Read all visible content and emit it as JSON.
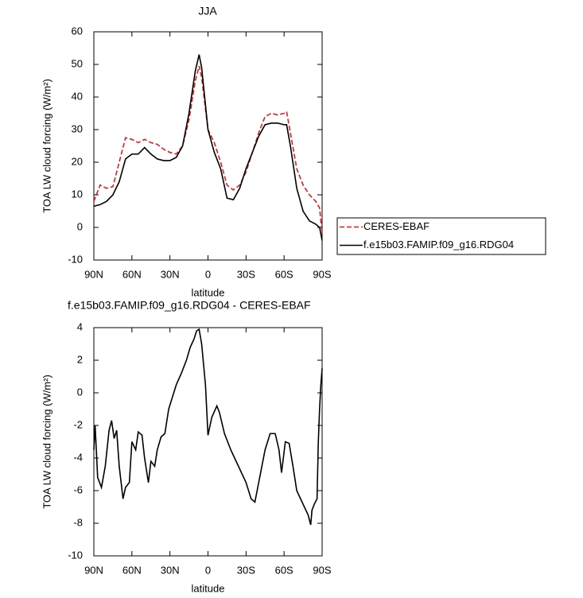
{
  "chart_data": [
    {
      "type": "line",
      "title": "JJA",
      "xlabel": "latitude",
      "ylabel": "TOA LW cloud forcing (W/m²)",
      "x": [
        90,
        85,
        80,
        75,
        70,
        65,
        60,
        55,
        50,
        45,
        40,
        35,
        30,
        25,
        20,
        15,
        10,
        7,
        5,
        0,
        -5,
        -10,
        -15,
        -20,
        -25,
        -30,
        -35,
        -40,
        -45,
        -50,
        -55,
        -60,
        -62,
        -65,
        -70,
        -75,
        -80,
        -85,
        -88,
        -90
      ],
      "series": [
        {
          "name": "CERES-EBAF",
          "color": "#e41a1c",
          "linestyle": "dashed",
          "values": [
            8,
            13,
            12,
            12.5,
            20,
            27.5,
            27,
            26,
            27,
            26,
            25.5,
            24,
            23,
            22.5,
            25,
            33,
            45,
            49.5,
            46,
            30,
            26,
            20,
            13,
            11.5,
            13,
            17,
            23,
            29,
            34,
            35,
            34.5,
            35,
            35.5,
            29,
            18,
            13,
            10,
            8,
            6,
            -2
          ]
        },
        {
          "name": "f.e15b03.FAMIP.f09_g16.RDG04",
          "color": "#000000",
          "linestyle": "solid",
          "values": [
            6.5,
            7,
            8,
            10,
            14,
            21,
            22.5,
            22.5,
            24.5,
            22.5,
            21,
            20.5,
            20.5,
            21.5,
            25,
            35,
            48,
            53,
            49,
            30,
            23,
            18,
            9,
            8.5,
            12,
            18,
            23,
            28,
            31.5,
            32,
            32,
            31.5,
            31.5,
            25,
            12,
            5,
            2,
            1,
            0,
            -4
          ]
        }
      ],
      "xlim": [
        90,
        -90
      ],
      "xticks": [
        {
          "value": 90,
          "label": "90N"
        },
        {
          "value": 60,
          "label": "60N"
        },
        {
          "value": 30,
          "label": "30N"
        },
        0,
        {
          "value": -30,
          "label": "30S"
        },
        {
          "value": -60,
          "label": "60S"
        },
        {
          "value": -90,
          "label": "90S"
        }
      ],
      "ylim": [
        -10,
        60
      ],
      "yticks": [
        -10,
        0,
        10,
        20,
        30,
        40,
        50,
        60
      ],
      "legend": "right"
    },
    {
      "type": "line",
      "title": "f.e15b03.FAMIP.f09_g16.RDG04 - CERES-EBAF",
      "xlabel": "latitude",
      "ylabel": "TOA LW cloud forcing (W/m²)",
      "x": [
        90,
        89,
        87,
        84,
        81,
        78,
        76,
        74,
        72,
        70,
        67,
        65,
        62,
        60,
        57,
        55,
        52,
        50,
        47,
        45,
        42,
        40,
        37,
        34,
        31,
        29,
        25,
        21,
        17,
        14,
        11,
        9,
        7,
        5,
        2,
        0,
        -3,
        -7,
        -9,
        -13,
        -18,
        -24,
        -30,
        -34,
        -37,
        -40,
        -45,
        -49,
        -53,
        -56,
        -58,
        -61,
        -64,
        -67,
        -70,
        -73,
        -76,
        -79,
        -81,
        -82,
        -84,
        -86,
        -87,
        -88,
        -89,
        -90
      ],
      "series": [
        {
          "name": "f.e15b03.FAMIP.f09_g16.RDG04 - CERES-EBAF",
          "color": "#000000",
          "linestyle": "solid",
          "values": [
            -3.5,
            -2,
            -5.2,
            -5.8,
            -4.5,
            -2.3,
            -1.7,
            -2.8,
            -2.3,
            -4.5,
            -6.5,
            -5.8,
            -5.5,
            -3,
            -3.5,
            -2.4,
            -2.6,
            -4,
            -5.5,
            -4.2,
            -4.5,
            -3.5,
            -2.7,
            -2.5,
            -1,
            -0.5,
            0.5,
            1.2,
            2,
            2.8,
            3.3,
            3.8,
            3.9,
            3,
            0.5,
            -2.6,
            -1.5,
            -0.8,
            -1.2,
            -2.5,
            -3.5,
            -4.5,
            -5.5,
            -6.5,
            -6.7,
            -5.5,
            -3.5,
            -2.5,
            -2.5,
            -3.5,
            -4.9,
            -3,
            -3.1,
            -4.5,
            -6,
            -6.5,
            -7,
            -7.5,
            -8.1,
            -7.2,
            -6.8,
            -6.5,
            -3,
            -1,
            0.5,
            1.5
          ]
        }
      ],
      "xlim": [
        90,
        -90
      ],
      "xticks": [
        {
          "value": 90,
          "label": "90N"
        },
        {
          "value": 60,
          "label": "60N"
        },
        {
          "value": 30,
          "label": "30N"
        },
        0,
        {
          "value": -30,
          "label": "30S"
        },
        {
          "value": -60,
          "label": "60S"
        },
        {
          "value": -90,
          "label": "90S"
        }
      ],
      "ylim": [
        -10,
        4
      ],
      "yticks": [
        -10,
        -8,
        -6,
        -4,
        -2,
        0,
        2,
        4
      ]
    }
  ]
}
